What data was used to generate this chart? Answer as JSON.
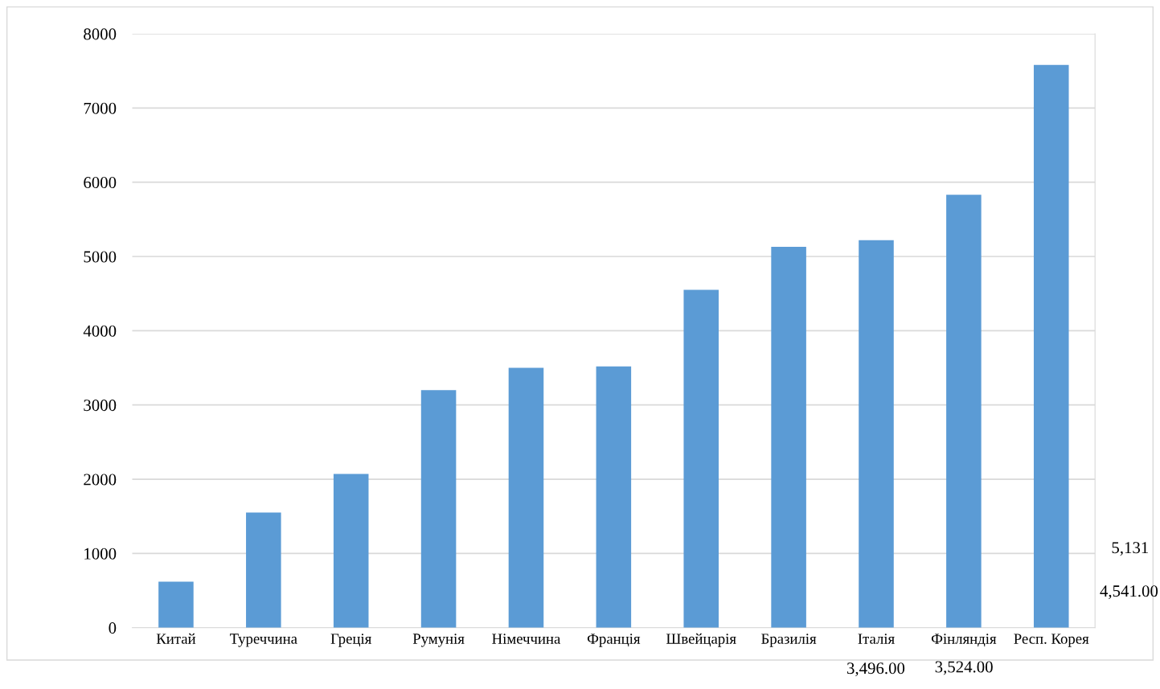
{
  "chart_data": {
    "type": "bar",
    "categories": [
      "Китай",
      "Туреччина",
      "Греція",
      "Румунія",
      "Німеччина",
      "Франція",
      "Швейцарія",
      "Бразилія",
      "Італія",
      "Фінляндія",
      "Респ. Корея"
    ],
    "values": [
      620,
      1550,
      2070,
      3200,
      3500,
      3520,
      4550,
      5130,
      5220,
      5830,
      7580
    ],
    "color": "#5b9bd5",
    "ylim": [
      0,
      8000
    ],
    "yticks": [
      0,
      1000,
      2000,
      3000,
      4000,
      5000,
      6000,
      7000,
      8000
    ],
    "grid": "y",
    "legend": false,
    "annotations": [
      "5,131",
      "4,541.00",
      "3,496.00",
      "3,524.00"
    ]
  }
}
